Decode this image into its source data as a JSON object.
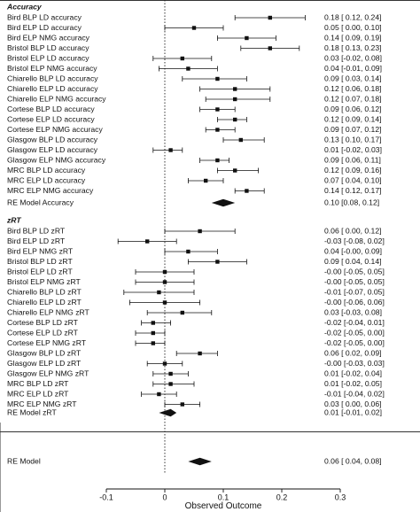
{
  "chart_data": {
    "type": "forest",
    "xlabel": "Observed Outcome",
    "xlim": [
      -0.1,
      0.3
    ],
    "xticks": [
      -0.1,
      0,
      0.1,
      0.2,
      0.3
    ],
    "xtick_labels": [
      "-0.1",
      "0",
      "0.1",
      "0.2",
      "0.3"
    ],
    "reference_line": 0,
    "sections": [
      {
        "heading": "Accuracy",
        "studies": [
          {
            "label": "Bird BLP LD accuracy",
            "est": 0.18,
            "lo": 0.12,
            "hi": 0.24,
            "text": "0.18 [ 0.12, 0.24]"
          },
          {
            "label": "Bird ELP LD accuracy",
            "est": 0.05,
            "lo": 0.0,
            "hi": 0.1,
            "text": "0.05 [ 0.00, 0.10]"
          },
          {
            "label": "Bird ELP NMG accuracy",
            "est": 0.14,
            "lo": 0.09,
            "hi": 0.19,
            "text": "0.14 [ 0.09, 0.19]"
          },
          {
            "label": "Bristol BLP LD accuracy",
            "est": 0.18,
            "lo": 0.13,
            "hi": 0.23,
            "text": "0.18 [ 0.13, 0.23]"
          },
          {
            "label": "Bristol ELP LD accuracy",
            "est": 0.03,
            "lo": -0.02,
            "hi": 0.08,
            "text": "0.03 [-0.02, 0.08]"
          },
          {
            "label": "Bristol ELP NMG accuracy",
            "est": 0.04,
            "lo": -0.01,
            "hi": 0.09,
            "text": "0.04 [-0.01, 0.09]"
          },
          {
            "label": "Chiarello BLP LD accuracy",
            "est": 0.09,
            "lo": 0.03,
            "hi": 0.14,
            "text": "0.09 [ 0.03, 0.14]"
          },
          {
            "label": "Chiarello ELP LD accuracy",
            "est": 0.12,
            "lo": 0.06,
            "hi": 0.18,
            "text": "0.12 [ 0.06, 0.18]"
          },
          {
            "label": "Chiarello ELP NMG accuracy",
            "est": 0.12,
            "lo": 0.07,
            "hi": 0.18,
            "text": "0.12 [ 0.07, 0.18]"
          },
          {
            "label": "Cortese BLP LD accuracy",
            "est": 0.09,
            "lo": 0.06,
            "hi": 0.12,
            "text": "0.09 [ 0.06, 0.12]"
          },
          {
            "label": "Cortese ELP LD accuracy",
            "est": 0.12,
            "lo": 0.09,
            "hi": 0.14,
            "text": "0.12 [ 0.09, 0.14]"
          },
          {
            "label": "Cortese ELP NMG accuracy",
            "est": 0.09,
            "lo": 0.07,
            "hi": 0.12,
            "text": "0.09 [ 0.07, 0.12]"
          },
          {
            "label": "Glasgow BLP LD accuracy",
            "est": 0.13,
            "lo": 0.1,
            "hi": 0.17,
            "text": "0.13 [ 0.10, 0.17]"
          },
          {
            "label": "Glasgow ELP LD accuracy",
            "est": 0.01,
            "lo": -0.02,
            "hi": 0.03,
            "text": "0.01 [-0.02, 0.03]"
          },
          {
            "label": "Glasgow ELP NMG accuracy",
            "est": 0.09,
            "lo": 0.06,
            "hi": 0.11,
            "text": "0.09 [ 0.06, 0.11]"
          },
          {
            "label": "MRC BLP LD accuracy",
            "est": 0.12,
            "lo": 0.09,
            "hi": 0.16,
            "text": "0.12 [ 0.09, 0.16]"
          },
          {
            "label": "MRC ELP LD accuracy",
            "est": 0.07,
            "lo": 0.04,
            "hi": 0.1,
            "text": "0.07 [ 0.04, 0.10]"
          },
          {
            "label": "MRC ELP NMG accuracy",
            "est": 0.14,
            "lo": 0.12,
            "hi": 0.17,
            "text": "0.14 [ 0.12, 0.17]"
          }
        ],
        "summary": {
          "label": "RE Model Accuracy",
          "est": 0.1,
          "lo": 0.08,
          "hi": 0.12,
          "text": "0.10 [0.08, 0.12]"
        }
      },
      {
        "heading": "zRT",
        "studies": [
          {
            "label": "Bird BLP LD zRT",
            "est": 0.06,
            "lo": 0.0,
            "hi": 0.12,
            "text": "0.06 [ 0.00, 0.12]"
          },
          {
            "label": "Bird ELP LD zRT",
            "est": -0.03,
            "lo": -0.08,
            "hi": 0.02,
            "text": "-0.03 [-0.08, 0.02]"
          },
          {
            "label": "Bird ELP NMG zRT",
            "est": 0.04,
            "lo": 0.0,
            "hi": 0.09,
            "text": "0.04 [-0.00, 0.09]"
          },
          {
            "label": "Bristol BLP LD zRT",
            "est": 0.09,
            "lo": 0.04,
            "hi": 0.14,
            "text": "0.09 [ 0.04, 0.14]"
          },
          {
            "label": "Bristol ELP LD zRT",
            "est": 0.0,
            "lo": -0.05,
            "hi": 0.05,
            "text": "-0.00 [-0.05, 0.05]"
          },
          {
            "label": "Bristol ELP NMG zRT",
            "est": 0.0,
            "lo": -0.05,
            "hi": 0.05,
            "text": "-0.00 [-0.05, 0.05]"
          },
          {
            "label": "Chiarello BLP LD zRT",
            "est": -0.01,
            "lo": -0.07,
            "hi": 0.05,
            "text": "-0.01 [-0.07, 0.05]"
          },
          {
            "label": "Chiarello ELP LD zRT",
            "est": 0.0,
            "lo": -0.06,
            "hi": 0.06,
            "text": "-0.00 [-0.06, 0.06]"
          },
          {
            "label": "Chiarello ELP NMG zRT",
            "est": 0.03,
            "lo": -0.03,
            "hi": 0.08,
            "text": "0.03 [-0.03, 0.08]"
          },
          {
            "label": "Cortese BLP LD zRT",
            "est": -0.02,
            "lo": -0.04,
            "hi": 0.01,
            "text": "-0.02 [-0.04, 0.01]"
          },
          {
            "label": "Cortese ELP LD zRT",
            "est": -0.02,
            "lo": -0.05,
            "hi": 0.0,
            "text": "-0.02 [-0.05, 0.00]"
          },
          {
            "label": "Cortese ELP NMG zRT",
            "est": -0.02,
            "lo": -0.05,
            "hi": 0.0,
            "text": "-0.02 [-0.05, 0.00]"
          },
          {
            "label": "Glasgow BLP LD zRT",
            "est": 0.06,
            "lo": 0.02,
            "hi": 0.09,
            "text": "0.06 [ 0.02, 0.09]"
          },
          {
            "label": "Glasgow ELP LD zRT",
            "est": 0.0,
            "lo": -0.03,
            "hi": 0.03,
            "text": "-0.00 [-0.03, 0.03]"
          },
          {
            "label": "Glasgow ELP NMG zRT",
            "est": 0.01,
            "lo": -0.02,
            "hi": 0.04,
            "text": "0.01 [-0.02, 0.04]"
          },
          {
            "label": "MRC BLP LD zRT",
            "est": 0.01,
            "lo": -0.02,
            "hi": 0.05,
            "text": "0.01 [-0.02, 0.05]"
          },
          {
            "label": "MRC ELP LD zRT",
            "est": -0.01,
            "lo": -0.04,
            "hi": 0.02,
            "text": "-0.01 [-0.04, 0.02]"
          },
          {
            "label": "MRC ELP NMG zRT",
            "est": 0.03,
            "lo": 0.0,
            "hi": 0.06,
            "text": "0.03 [ 0.00, 0.06]"
          }
        ],
        "summary": {
          "label": "RE Model zRT",
          "est": 0.01,
          "lo": -0.01,
          "hi": 0.02,
          "text": "0.01 [-0.01, 0.02]"
        }
      }
    ],
    "overall": {
      "label": "RE Model",
      "est": 0.06,
      "lo": 0.04,
      "hi": 0.08,
      "text": "0.06 [ 0.04, 0.08]"
    },
    "grid": false
  }
}
